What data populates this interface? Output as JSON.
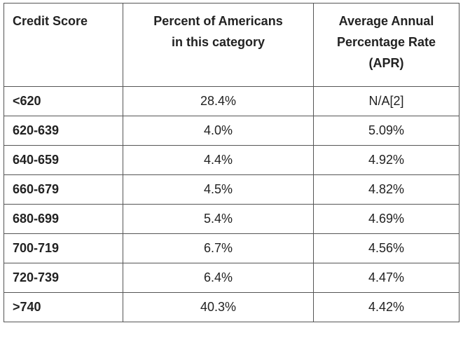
{
  "table": {
    "headers": [
      {
        "line1": "Credit Score",
        "line2": "",
        "line3": ""
      },
      {
        "line1": "Percent of Americans",
        "line2": "in this category",
        "line3": ""
      },
      {
        "line1": "Average Annual",
        "line2": "Percentage Rate",
        "line3": "(APR)"
      }
    ],
    "rows": [
      {
        "score": "<620",
        "percent": "28.4%",
        "apr": "N/A[2]"
      },
      {
        "score": "620-639",
        "percent": "4.0%",
        "apr": "5.09%"
      },
      {
        "score": "640-659",
        "percent": "4.4%",
        "apr": "4.92%"
      },
      {
        "score": "660-679",
        "percent": "4.5%",
        "apr": "4.82%"
      },
      {
        "score": "680-699",
        "percent": "5.4%",
        "apr": "4.69%"
      },
      {
        "score": "700-719",
        "percent": "6.7%",
        "apr": "4.56%"
      },
      {
        "score": "720-739",
        "percent": "6.4%",
        "apr": "4.47%"
      },
      {
        "score": ">740",
        "percent": "40.3%",
        "apr": "4.42%"
      }
    ]
  }
}
